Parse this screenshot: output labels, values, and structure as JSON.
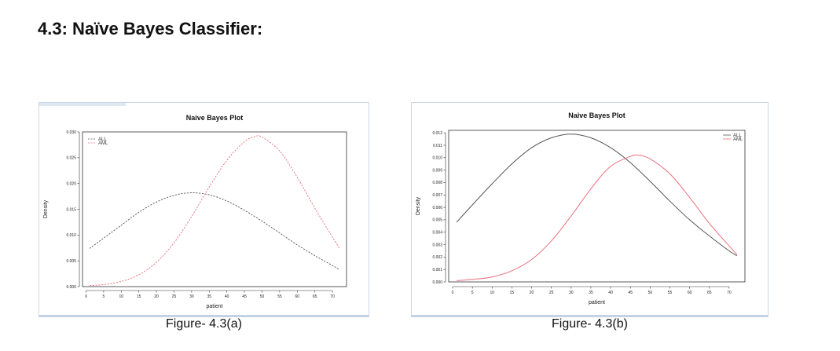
{
  "heading": "4.3: Naïve Bayes Classifier:",
  "captions": [
    "Figure- 4.3(a)",
    "Figure- 4.3(b)"
  ],
  "colors": {
    "ALL": "#555555",
    "AML": "#e8707f"
  },
  "chart_data": [
    {
      "type": "line",
      "title": "Naive Bayes Plot",
      "xlabel": "patient",
      "ylabel": "Density",
      "xlim": [
        -1,
        74
      ],
      "ylim": [
        0,
        0.03
      ],
      "xticks": [
        0,
        5,
        10,
        15,
        20,
        25,
        30,
        35,
        40,
        45,
        50,
        55,
        60,
        65,
        70
      ],
      "yticks": [
        0.0,
        0.005,
        0.01,
        0.015,
        0.02,
        0.025,
        0.03
      ],
      "ytick_labels": [
        "0.000",
        "0.005",
        "0.010",
        "0.015",
        "0.020",
        "0.025",
        "0.030"
      ],
      "legend": {
        "position": "top-left",
        "entries": [
          "ALL",
          "AML"
        ]
      },
      "grid": false,
      "series": [
        {
          "name": "ALL",
          "color": "#555555",
          "dash": true,
          "x": [
            1,
            5,
            10,
            15,
            20,
            25,
            30,
            35,
            40,
            45,
            50,
            55,
            60,
            65,
            70,
            72
          ],
          "y": [
            0.0074,
            0.0094,
            0.0119,
            0.0144,
            0.0164,
            0.0177,
            0.0182,
            0.0178,
            0.0166,
            0.0148,
            0.0127,
            0.0104,
            0.0081,
            0.006,
            0.0041,
            0.0033
          ]
        },
        {
          "name": "AML",
          "color": "#e8707f",
          "dash": true,
          "x": [
            1,
            5,
            10,
            15,
            20,
            25,
            30,
            35,
            40,
            45,
            48,
            50,
            55,
            60,
            65,
            70,
            72
          ],
          "y": [
            0.0002,
            0.0004,
            0.001,
            0.0023,
            0.0047,
            0.0085,
            0.0136,
            0.0193,
            0.0245,
            0.0281,
            0.0291,
            0.029,
            0.0263,
            0.0212,
            0.0152,
            0.0096,
            0.0075
          ]
        }
      ]
    },
    {
      "type": "line",
      "title": "Naive Bayes Plot",
      "xlabel": "patient",
      "ylabel": "Density",
      "xlim": [
        -1,
        74
      ],
      "ylim": [
        0,
        0.0122
      ],
      "xticks": [
        0,
        5,
        10,
        15,
        20,
        25,
        30,
        35,
        40,
        45,
        50,
        55,
        60,
        65,
        70
      ],
      "yticks": [
        0.0,
        0.001,
        0.002,
        0.003,
        0.004,
        0.005,
        0.006,
        0.007,
        0.008,
        0.009,
        0.01,
        0.011,
        0.012
      ],
      "ytick_labels": [
        "0.000",
        "0.001",
        "0.002",
        "0.003",
        "0.004",
        "0.005",
        "0.006",
        "0.007",
        "0.008",
        "0.009",
        "0.010",
        "0.011",
        "0.012"
      ],
      "legend": {
        "position": "top-right",
        "entries": [
          "ALL",
          "AML"
        ]
      },
      "grid": false,
      "series": [
        {
          "name": "ALL",
          "color": "#555555",
          "dash": false,
          "x": [
            1,
            5,
            10,
            15,
            20,
            25,
            30,
            35,
            40,
            45,
            50,
            55,
            60,
            65,
            70,
            72
          ],
          "y": [
            0.0048,
            0.0062,
            0.0079,
            0.0095,
            0.0108,
            0.0116,
            0.0119,
            0.0116,
            0.0108,
            0.0096,
            0.0081,
            0.0065,
            0.005,
            0.0037,
            0.0025,
            0.0021
          ]
        },
        {
          "name": "AML",
          "color": "#e8707f",
          "dash": false,
          "x": [
            1,
            5,
            10,
            15,
            20,
            25,
            30,
            35,
            40,
            45,
            47,
            50,
            55,
            60,
            65,
            70,
            72
          ],
          "y": [
            0.0001,
            0.0002,
            0.0004,
            0.0009,
            0.0018,
            0.0033,
            0.0053,
            0.0075,
            0.0093,
            0.0101,
            0.0102,
            0.0099,
            0.0087,
            0.0068,
            0.0047,
            0.0029,
            0.0022
          ]
        }
      ]
    }
  ]
}
